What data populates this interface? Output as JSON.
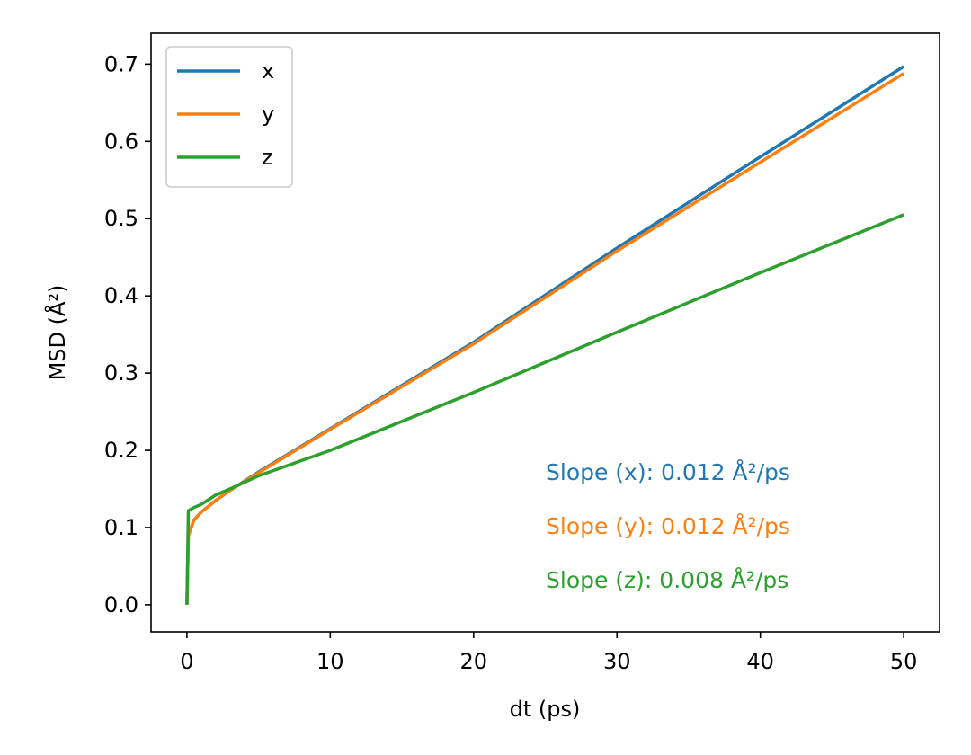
{
  "chart_data": {
    "type": "line",
    "xlabel": "dt (ps)",
    "ylabel": "MSD (Å²)",
    "xlim": [
      -2.5,
      52.5
    ],
    "ylim": [
      -0.035,
      0.74
    ],
    "xticks": [
      0,
      10,
      20,
      30,
      40,
      50
    ],
    "yticks": [
      0.0,
      0.1,
      0.2,
      0.3,
      0.4,
      0.5,
      0.6,
      0.7
    ],
    "xtick_labels": [
      "0",
      "10",
      "20",
      "30",
      "40",
      "50"
    ],
    "ytick_labels": [
      "0.0",
      "0.1",
      "0.2",
      "0.3",
      "0.4",
      "0.5",
      "0.6",
      "0.7"
    ],
    "grid": false,
    "legend_position": "top-left",
    "x": [
      0,
      0.1,
      0.5,
      1,
      2,
      3,
      5,
      10,
      20,
      30,
      40,
      50
    ],
    "series": [
      {
        "name": "x",
        "color": "#1f77b4",
        "values": [
          0,
          0.09,
          0.11,
          0.12,
          0.135,
          0.148,
          0.172,
          0.228,
          0.34,
          0.462,
          0.58,
          0.697
        ]
      },
      {
        "name": "y",
        "color": "#ff7f0e",
        "values": [
          0,
          0.09,
          0.11,
          0.12,
          0.135,
          0.148,
          0.171,
          0.227,
          0.338,
          0.458,
          0.573,
          0.688
        ]
      },
      {
        "name": "z",
        "color": "#2ca02c",
        "values": [
          0,
          0.122,
          0.126,
          0.13,
          0.142,
          0.15,
          0.167,
          0.2,
          0.275,
          0.353,
          0.43,
          0.505
        ]
      }
    ],
    "annotations": [
      {
        "text": "Slope (x): 0.012 Å²/ps",
        "color": "#1f77b4"
      },
      {
        "text": "Slope (y): 0.012 Å²/ps",
        "color": "#ff7f0e"
      },
      {
        "text": "Slope (z): 0.008 Å²/ps",
        "color": "#2ca02c"
      }
    ]
  }
}
